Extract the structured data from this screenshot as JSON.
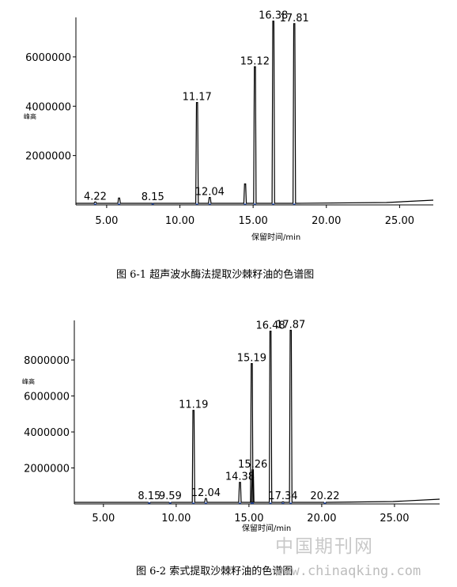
{
  "chart_data": [
    {
      "type": "line",
      "xlabel": "保留时间/min",
      "ylabel": "峰高",
      "xlim": [
        2.9,
        27.3
      ],
      "ylim": [
        0,
        7600000
      ],
      "xticks": [
        5,
        10,
        15,
        20,
        25
      ],
      "xtick_labels": [
        "5.00",
        "10.00",
        "15.00",
        "20.00",
        "25.00"
      ],
      "yticks": [
        2000000,
        4000000,
        6000000
      ],
      "ytick_labels": [
        "2000000",
        "4000000",
        "6000000"
      ],
      "peaks": [
        {
          "rt": 4.22,
          "height": 120000,
          "label": "4.22"
        },
        {
          "rt": 5.85,
          "height": 280000,
          "label": ""
        },
        {
          "rt": 8.15,
          "height": 60000,
          "label": "8.15"
        },
        {
          "rt": 11.17,
          "height": 4150000,
          "label": "11.17"
        },
        {
          "rt": 12.04,
          "height": 300000,
          "label": "12.04"
        },
        {
          "rt": 14.45,
          "height": 850000,
          "label": ""
        },
        {
          "rt": 15.12,
          "height": 5600000,
          "label": "15.12"
        },
        {
          "rt": 16.38,
          "height": 7450000,
          "label": "16.38"
        },
        {
          "rt": 17.81,
          "height": 7350000,
          "label": "17.81"
        }
      ],
      "caption": "图 6-1 超声波水酶法提取沙棘籽油的色谱图"
    },
    {
      "type": "line",
      "xlabel": "保留时间/min",
      "ylabel": "峰高",
      "xlim": [
        3.0,
        28.1
      ],
      "ylim": [
        0,
        10200000
      ],
      "xticks": [
        5,
        10,
        15,
        20,
        25
      ],
      "xtick_labels": [
        "5.00",
        "10.00",
        "15.00",
        "20.00",
        "25.00"
      ],
      "yticks": [
        2000000,
        4000000,
        6000000,
        8000000
      ],
      "ytick_labels": [
        "2000000",
        "4000000",
        "6000000",
        "8000000"
      ],
      "peaks": [
        {
          "rt": 8.15,
          "height": 60000,
          "label": "8.15"
        },
        {
          "rt": 9.59,
          "height": 60000,
          "label": "9.59"
        },
        {
          "rt": 11.19,
          "height": 5200000,
          "label": "11.19"
        },
        {
          "rt": 12.04,
          "height": 300000,
          "label": "12.04"
        },
        {
          "rt": 14.38,
          "height": 1200000,
          "label": "14.38"
        },
        {
          "rt": 15.19,
          "height": 7800000,
          "label": "15.19"
        },
        {
          "rt": 15.26,
          "height": 1900000,
          "label": "15.26"
        },
        {
          "rt": 16.48,
          "height": 9600000,
          "label": "16.48"
        },
        {
          "rt": 17.34,
          "height": 120000,
          "label": "17.34"
        },
        {
          "rt": 17.87,
          "height": 9650000,
          "label": "17.87"
        },
        {
          "rt": 20.22,
          "height": 40000,
          "label": "20.22"
        }
      ],
      "caption": "图 6-2 索式提取沙棘籽油的色谱图"
    }
  ],
  "watermark": {
    "text_cn": "中国期刊网",
    "url": "www.chinaqking.com"
  }
}
